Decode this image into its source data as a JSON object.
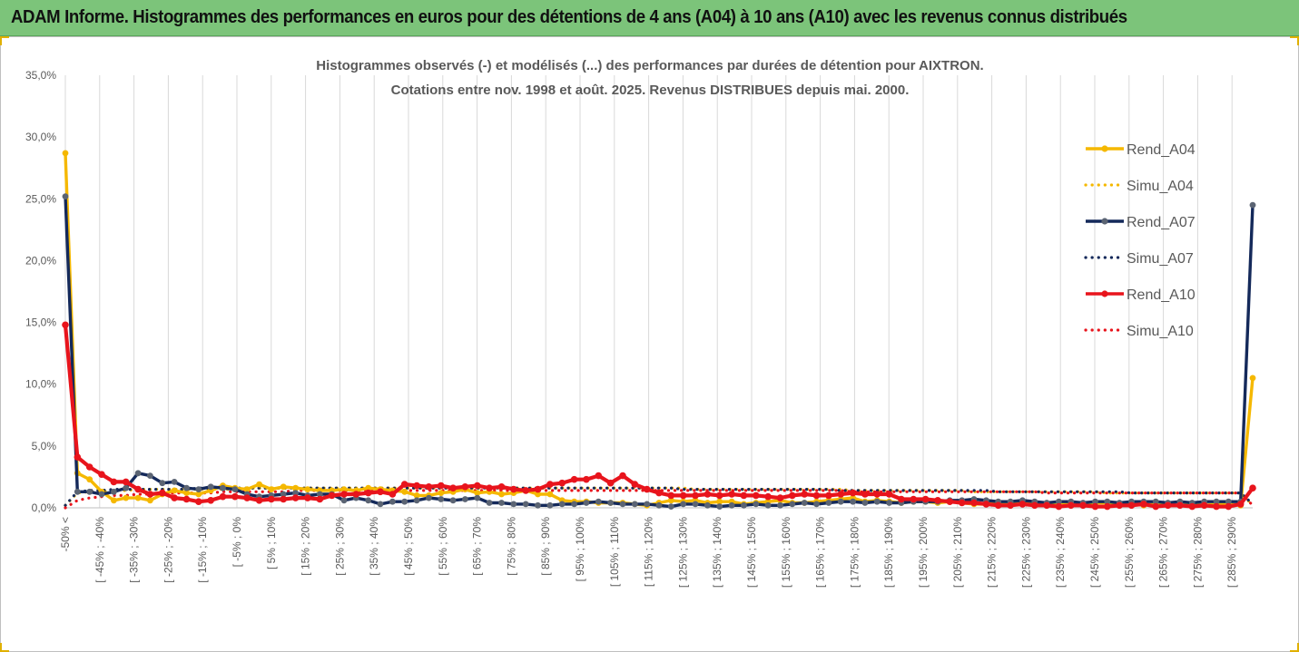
{
  "banner": {
    "title": "ADAM Informe. Histogrammes des performances en euros pour des détentions de 4 ans (A04) à 10 ans (A10) avec les revenus connus distribués"
  },
  "chart_data": {
    "type": "line",
    "title": "Histogrammes observés (-) et modélisés (...) des performances par durées de détention pour AIXTRON.",
    "subtitle": "Cotations entre nov. 1998 et août. 2025. Revenus DISTRIBUES depuis mai. 2000.",
    "ylim": [
      0,
      35
    ],
    "yticks": [
      "0,0%",
      "5,0%",
      "10,0%",
      "15,0%",
      "20,0%",
      "25,0%",
      "30,0%",
      "35,0%"
    ],
    "grid": "vertical",
    "legend_position": "right",
    "x_labels": [
      "-50% <",
      "[ -45% ; -40%",
      "[ -35% ; -30%",
      "[ -25% ; -20%",
      "[ -15% ; -10%",
      "[ -5% ; 0%",
      "[ 5% ; 10%",
      "[ 15% ; 20%",
      "[ 25% ; 30%",
      "[ 35% ; 40%",
      "[ 45% ; 50%",
      "[ 55% ; 60%",
      "[ 65% ; 70%",
      "[ 75% ; 80%",
      "[ 85% ; 90%",
      "[ 95% ; 100%",
      "[ 105% ; 110%",
      "[ 115% ; 120%",
      "[ 125% ; 130%",
      "[ 135% ; 140%",
      "[ 145% ; 150%",
      "[ 155% ; 160%",
      "[ 165% ; 170%",
      "[ 175% ; 180%",
      "[ 185% ; 190%",
      "[ 195% ; 200%",
      "[ 205% ; 210%",
      "[ 215% ; 220%",
      "[ 225% ; 230%",
      "[ 235% ; 240%",
      "[ 245% ; 250%",
      "[ 255% ; 260%",
      "[ 265% ; 270%",
      "[ 275% ; 280%",
      "[ 285% ; 290%"
    ],
    "series": [
      {
        "name": "Rend_A04",
        "style": "solid",
        "color": "#f5b800",
        "values": [
          28.7,
          2.8,
          2.3,
          1.3,
          0.6,
          0.8,
          0.8,
          0.6,
          1.1,
          1.4,
          1.2,
          1.1,
          1.4,
          1.8,
          1.6,
          1.5,
          1.9,
          1.5,
          1.7,
          1.6,
          1.5,
          1.4,
          1.4,
          1.5,
          1.4,
          1.6,
          1.5,
          1.4,
          1.3,
          1.0,
          1.0,
          1.2,
          1.3,
          1.5,
          1.2,
          1.3,
          1.1,
          1.2,
          1.4,
          1.1,
          1.1,
          0.6,
          0.5,
          0.5,
          0.4,
          0.4,
          0.4,
          0.3,
          0.2,
          0.4,
          0.6,
          0.5,
          0.6,
          0.4,
          0.5,
          0.5,
          0.3,
          0.4,
          0.5,
          0.6,
          0.4,
          0.4,
          0.5,
          0.6,
          0.7,
          0.8,
          0.5,
          0.6,
          0.5,
          0.4,
          0.5,
          0.5,
          0.4,
          0.5,
          0.4,
          0.3,
          0.3,
          0.4,
          0.3,
          0.5,
          0.4,
          0.3,
          0.4,
          0.4,
          0.3,
          0.4,
          0.4,
          0.3,
          0.3,
          0.2,
          0.3,
          0.2,
          0.2,
          0.3,
          0.2,
          0.3,
          0.3,
          0.2,
          10.5
        ]
      },
      {
        "name": "Simu_A04",
        "style": "dotted",
        "color": "#f5b800",
        "values": [
          0.2,
          1.2,
          1.3,
          1.3,
          1.4,
          1.4,
          1.5,
          1.5,
          1.5,
          1.5,
          1.5,
          1.5,
          1.5,
          1.5,
          1.5,
          1.6,
          1.6,
          1.6,
          1.6,
          1.6,
          1.6,
          1.6,
          1.6,
          1.6,
          1.6,
          1.6,
          1.6,
          1.6,
          1.6,
          1.6,
          1.6,
          1.6,
          1.6,
          1.6,
          1.6,
          1.6,
          1.6,
          1.6,
          1.6,
          1.6,
          1.6,
          1.6,
          1.6,
          1.6,
          1.6,
          1.6,
          1.6,
          1.6,
          1.6,
          1.6,
          1.6,
          1.6,
          1.5,
          1.5,
          1.5,
          1.5,
          1.5,
          1.5,
          1.5,
          1.5,
          1.5,
          1.5,
          1.5,
          1.5,
          1.5,
          1.4,
          1.4,
          1.4,
          1.4,
          1.4,
          1.4,
          1.4,
          1.4,
          1.4,
          1.4,
          1.3,
          1.3,
          1.3,
          1.3,
          1.3,
          1.3,
          1.3,
          1.3,
          1.3,
          1.3,
          1.3,
          1.2,
          1.2,
          1.2,
          1.2,
          1.2,
          1.2,
          1.2,
          1.2,
          1.2,
          1.2,
          1.2,
          1.2,
          0.2
        ]
      },
      {
        "name": "Rend_A07",
        "style": "solid",
        "color": "#14295a",
        "values": [
          25.2,
          1.3,
          1.3,
          1.1,
          1.3,
          1.6,
          2.8,
          2.6,
          2.0,
          2.1,
          1.6,
          1.5,
          1.7,
          1.6,
          1.5,
          1.1,
          0.9,
          1.0,
          1.1,
          1.2,
          1.0,
          1.1,
          1.1,
          0.6,
          0.8,
          0.6,
          0.3,
          0.5,
          0.5,
          0.6,
          0.8,
          0.7,
          0.6,
          0.7,
          0.8,
          0.4,
          0.4,
          0.3,
          0.3,
          0.2,
          0.2,
          0.3,
          0.3,
          0.4,
          0.5,
          0.4,
          0.3,
          0.3,
          0.3,
          0.2,
          0.1,
          0.3,
          0.3,
          0.2,
          0.1,
          0.2,
          0.2,
          0.3,
          0.2,
          0.2,
          0.3,
          0.4,
          0.3,
          0.4,
          0.5,
          0.5,
          0.4,
          0.5,
          0.4,
          0.4,
          0.5,
          0.5,
          0.5,
          0.6,
          0.6,
          0.7,
          0.6,
          0.5,
          0.5,
          0.6,
          0.5,
          0.4,
          0.5,
          0.5,
          0.4,
          0.5,
          0.5,
          0.4,
          0.5,
          0.5,
          0.5,
          0.4,
          0.5,
          0.4,
          0.5,
          0.5,
          0.5,
          0.5,
          24.5
        ]
      },
      {
        "name": "Simu_A07",
        "style": "dotted",
        "color": "#14295a",
        "values": [
          0.2,
          1.3,
          1.4,
          1.4,
          1.5,
          1.5,
          1.5,
          1.5,
          1.5,
          1.5,
          1.5,
          1.6,
          1.6,
          1.6,
          1.6,
          1.6,
          1.6,
          1.6,
          1.6,
          1.6,
          1.6,
          1.6,
          1.6,
          1.6,
          1.6,
          1.6,
          1.6,
          1.6,
          1.6,
          1.6,
          1.6,
          1.6,
          1.6,
          1.6,
          1.6,
          1.6,
          1.6,
          1.6,
          1.6,
          1.6,
          1.6,
          1.6,
          1.6,
          1.6,
          1.6,
          1.6,
          1.6,
          1.6,
          1.6,
          1.6,
          1.6,
          1.5,
          1.5,
          1.5,
          1.5,
          1.5,
          1.5,
          1.5,
          1.5,
          1.5,
          1.5,
          1.5,
          1.5,
          1.5,
          1.4,
          1.4,
          1.4,
          1.4,
          1.4,
          1.4,
          1.4,
          1.4,
          1.4,
          1.4,
          1.4,
          1.4,
          1.4,
          1.3,
          1.3,
          1.3,
          1.3,
          1.3,
          1.3,
          1.3,
          1.3,
          1.3,
          1.3,
          1.3,
          1.2,
          1.2,
          1.2,
          1.2,
          1.2,
          1.2,
          1.2,
          1.2,
          1.2,
          1.2,
          0.3
        ]
      },
      {
        "name": "Rend_A10",
        "style": "solid",
        "color": "#e8141c",
        "values": [
          14.8,
          4.1,
          3.3,
          2.7,
          2.1,
          2.1,
          1.5,
          1.1,
          1.2,
          0.8,
          0.7,
          0.5,
          0.6,
          0.9,
          0.9,
          0.8,
          0.6,
          0.7,
          0.7,
          0.8,
          0.8,
          0.7,
          1.0,
          1.1,
          1.1,
          1.2,
          1.3,
          1.1,
          1.9,
          1.8,
          1.7,
          1.8,
          1.6,
          1.7,
          1.8,
          1.6,
          1.7,
          1.5,
          1.4,
          1.5,
          1.9,
          2.0,
          2.3,
          2.3,
          2.6,
          2.0,
          2.6,
          1.9,
          1.5,
          1.2,
          1.0,
          1.0,
          1.0,
          1.1,
          1.0,
          1.1,
          1.0,
          1.0,
          0.9,
          0.8,
          1.0,
          1.1,
          1.0,
          1.0,
          1.1,
          1.2,
          1.1,
          1.1,
          1.1,
          0.7,
          0.7,
          0.7,
          0.6,
          0.5,
          0.4,
          0.4,
          0.3,
          0.2,
          0.2,
          0.3,
          0.2,
          0.2,
          0.1,
          0.2,
          0.2,
          0.1,
          0.1,
          0.2,
          0.2,
          0.3,
          0.1,
          0.2,
          0.2,
          0.1,
          0.2,
          0.1,
          0.1,
          0.3,
          1.6
        ]
      },
      {
        "name": "Simu_A10",
        "style": "dotted",
        "color": "#e8141c",
        "values": [
          0.0,
          0.6,
          0.8,
          0.9,
          1.0,
          1.0,
          1.1,
          1.1,
          1.1,
          1.2,
          1.2,
          1.2,
          1.2,
          1.3,
          1.3,
          1.3,
          1.3,
          1.3,
          1.3,
          1.4,
          1.4,
          1.4,
          1.4,
          1.4,
          1.4,
          1.4,
          1.4,
          1.4,
          1.4,
          1.4,
          1.4,
          1.4,
          1.4,
          1.4,
          1.4,
          1.4,
          1.4,
          1.4,
          1.4,
          1.4,
          1.4,
          1.4,
          1.4,
          1.4,
          1.4,
          1.4,
          1.4,
          1.4,
          1.4,
          1.4,
          1.4,
          1.4,
          1.4,
          1.4,
          1.4,
          1.4,
          1.4,
          1.4,
          1.4,
          1.4,
          1.4,
          1.4,
          1.4,
          1.4,
          1.4,
          1.3,
          1.3,
          1.3,
          1.3,
          1.3,
          1.3,
          1.3,
          1.3,
          1.3,
          1.3,
          1.3,
          1.3,
          1.3,
          1.3,
          1.3,
          1.3,
          1.2,
          1.2,
          1.2,
          1.2,
          1.2,
          1.2,
          1.2,
          1.2,
          1.2,
          1.2,
          1.2,
          1.2,
          1.2,
          1.2,
          1.2,
          1.2,
          1.2,
          0.2
        ]
      }
    ]
  }
}
